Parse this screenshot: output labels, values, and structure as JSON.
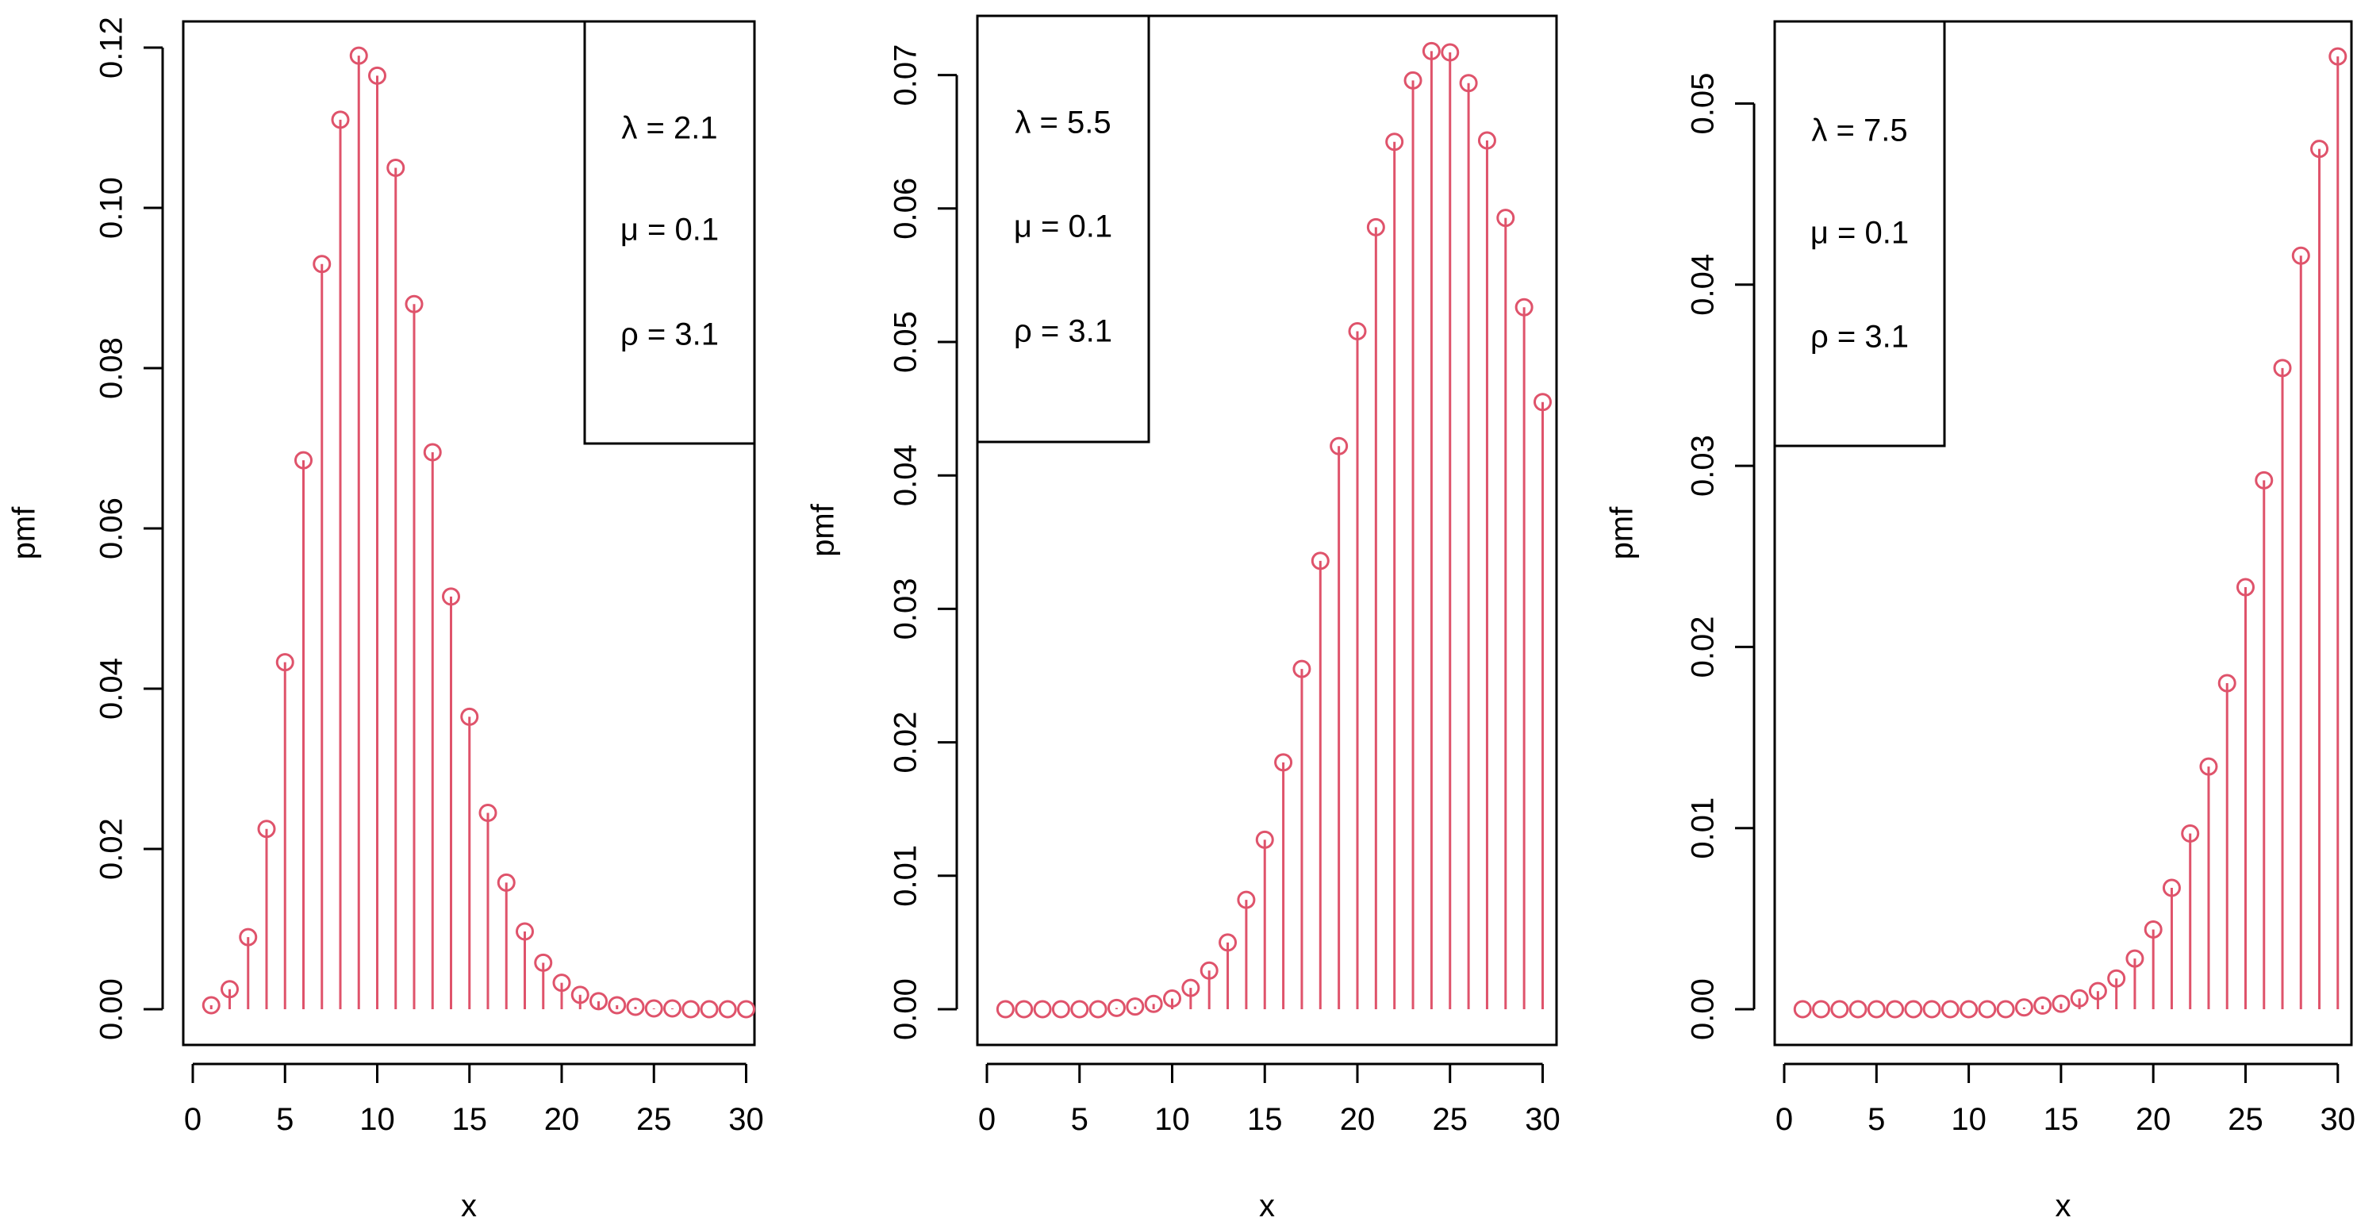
{
  "colors": {
    "series": "#DF536B",
    "axis": "#000000",
    "background": "#FFFFFF"
  },
  "chart_data": [
    {
      "type": "scatter",
      "style": "stems-with-open-circles",
      "xlabel": "x",
      "ylabel": "pmf",
      "xlim": [
        0,
        30
      ],
      "ylim": [
        0,
        0.12
      ],
      "xticks": [
        "0",
        "5",
        "10",
        "15",
        "20",
        "25",
        "30"
      ],
      "yticks": [
        "0.00",
        "0.02",
        "0.04",
        "0.06",
        "0.08",
        "0.10",
        "0.12"
      ],
      "legend": {
        "position": "top-right",
        "lines": [
          "λ = 2.1",
          "μ = 0.1",
          "ρ = 3.1"
        ]
      },
      "x": [
        1,
        2,
        3,
        4,
        5,
        6,
        7,
        8,
        9,
        10,
        11,
        12,
        13,
        14,
        15,
        16,
        17,
        18,
        19,
        20,
        21,
        22,
        23,
        24,
        25,
        26,
        27,
        28,
        29,
        30
      ],
      "y": [
        0.0005,
        0.0025,
        0.009,
        0.0225,
        0.0433,
        0.0685,
        0.093,
        0.111,
        0.119,
        0.1165,
        0.105,
        0.088,
        0.0695,
        0.0515,
        0.0365,
        0.0245,
        0.0158,
        0.0097,
        0.0058,
        0.0033,
        0.0018,
        0.001,
        0.0005,
        0.0003,
        0.0001,
        0.0001,
        0,
        0,
        0,
        0
      ]
    },
    {
      "type": "scatter",
      "style": "stems-with-open-circles",
      "xlabel": "x",
      "ylabel": "pmf",
      "xlim": [
        0,
        30
      ],
      "ylim": [
        0,
        0.07
      ],
      "xticks": [
        "0",
        "5",
        "10",
        "15",
        "20",
        "25",
        "30"
      ],
      "yticks": [
        "0.00",
        "0.01",
        "0.02",
        "0.03",
        "0.04",
        "0.05",
        "0.06",
        "0.07"
      ],
      "legend": {
        "position": "top-left",
        "lines": [
          "λ = 5.5",
          "μ = 0.1",
          "ρ = 3.1"
        ]
      },
      "x": [
        1,
        2,
        3,
        4,
        5,
        6,
        7,
        8,
        9,
        10,
        11,
        12,
        13,
        14,
        15,
        16,
        17,
        18,
        19,
        20,
        21,
        22,
        23,
        24,
        25,
        26,
        27,
        28,
        29,
        30
      ],
      "y": [
        0,
        0,
        0,
        0,
        0,
        0,
        0.0001,
        0.0002,
        0.0004,
        0.0008,
        0.0016,
        0.0029,
        0.005,
        0.0082,
        0.0127,
        0.0185,
        0.0255,
        0.0336,
        0.0422,
        0.0508,
        0.0586,
        0.065,
        0.0696,
        0.0718,
        0.0717,
        0.0694,
        0.0651,
        0.0593,
        0.0526,
        0.0455
      ]
    },
    {
      "type": "scatter",
      "style": "stems-with-open-circles",
      "xlabel": "x",
      "ylabel": "pmf",
      "xlim": [
        0,
        30
      ],
      "ylim": [
        0,
        0.053
      ],
      "xticks": [
        "0",
        "5",
        "10",
        "15",
        "20",
        "25",
        "30"
      ],
      "yticks": [
        "0.00",
        "0.01",
        "0.02",
        "0.03",
        "0.04",
        "0.05"
      ],
      "legend": {
        "position": "top-left",
        "lines": [
          "λ = 7.5",
          "μ = 0.1",
          "ρ = 3.1"
        ]
      },
      "x": [
        1,
        2,
        3,
        4,
        5,
        6,
        7,
        8,
        9,
        10,
        11,
        12,
        13,
        14,
        15,
        16,
        17,
        18,
        19,
        20,
        21,
        22,
        23,
        24,
        25,
        26,
        27,
        28,
        29,
        30
      ],
      "y": [
        0,
        0,
        0,
        0,
        0,
        0,
        0,
        0,
        0,
        0,
        0,
        0,
        0.0001,
        0.0002,
        0.0003,
        0.0006,
        0.001,
        0.0017,
        0.0028,
        0.0044,
        0.0067,
        0.0097,
        0.0134,
        0.018,
        0.0233,
        0.0292,
        0.0354,
        0.0416,
        0.0475,
        0.0526
      ]
    }
  ]
}
